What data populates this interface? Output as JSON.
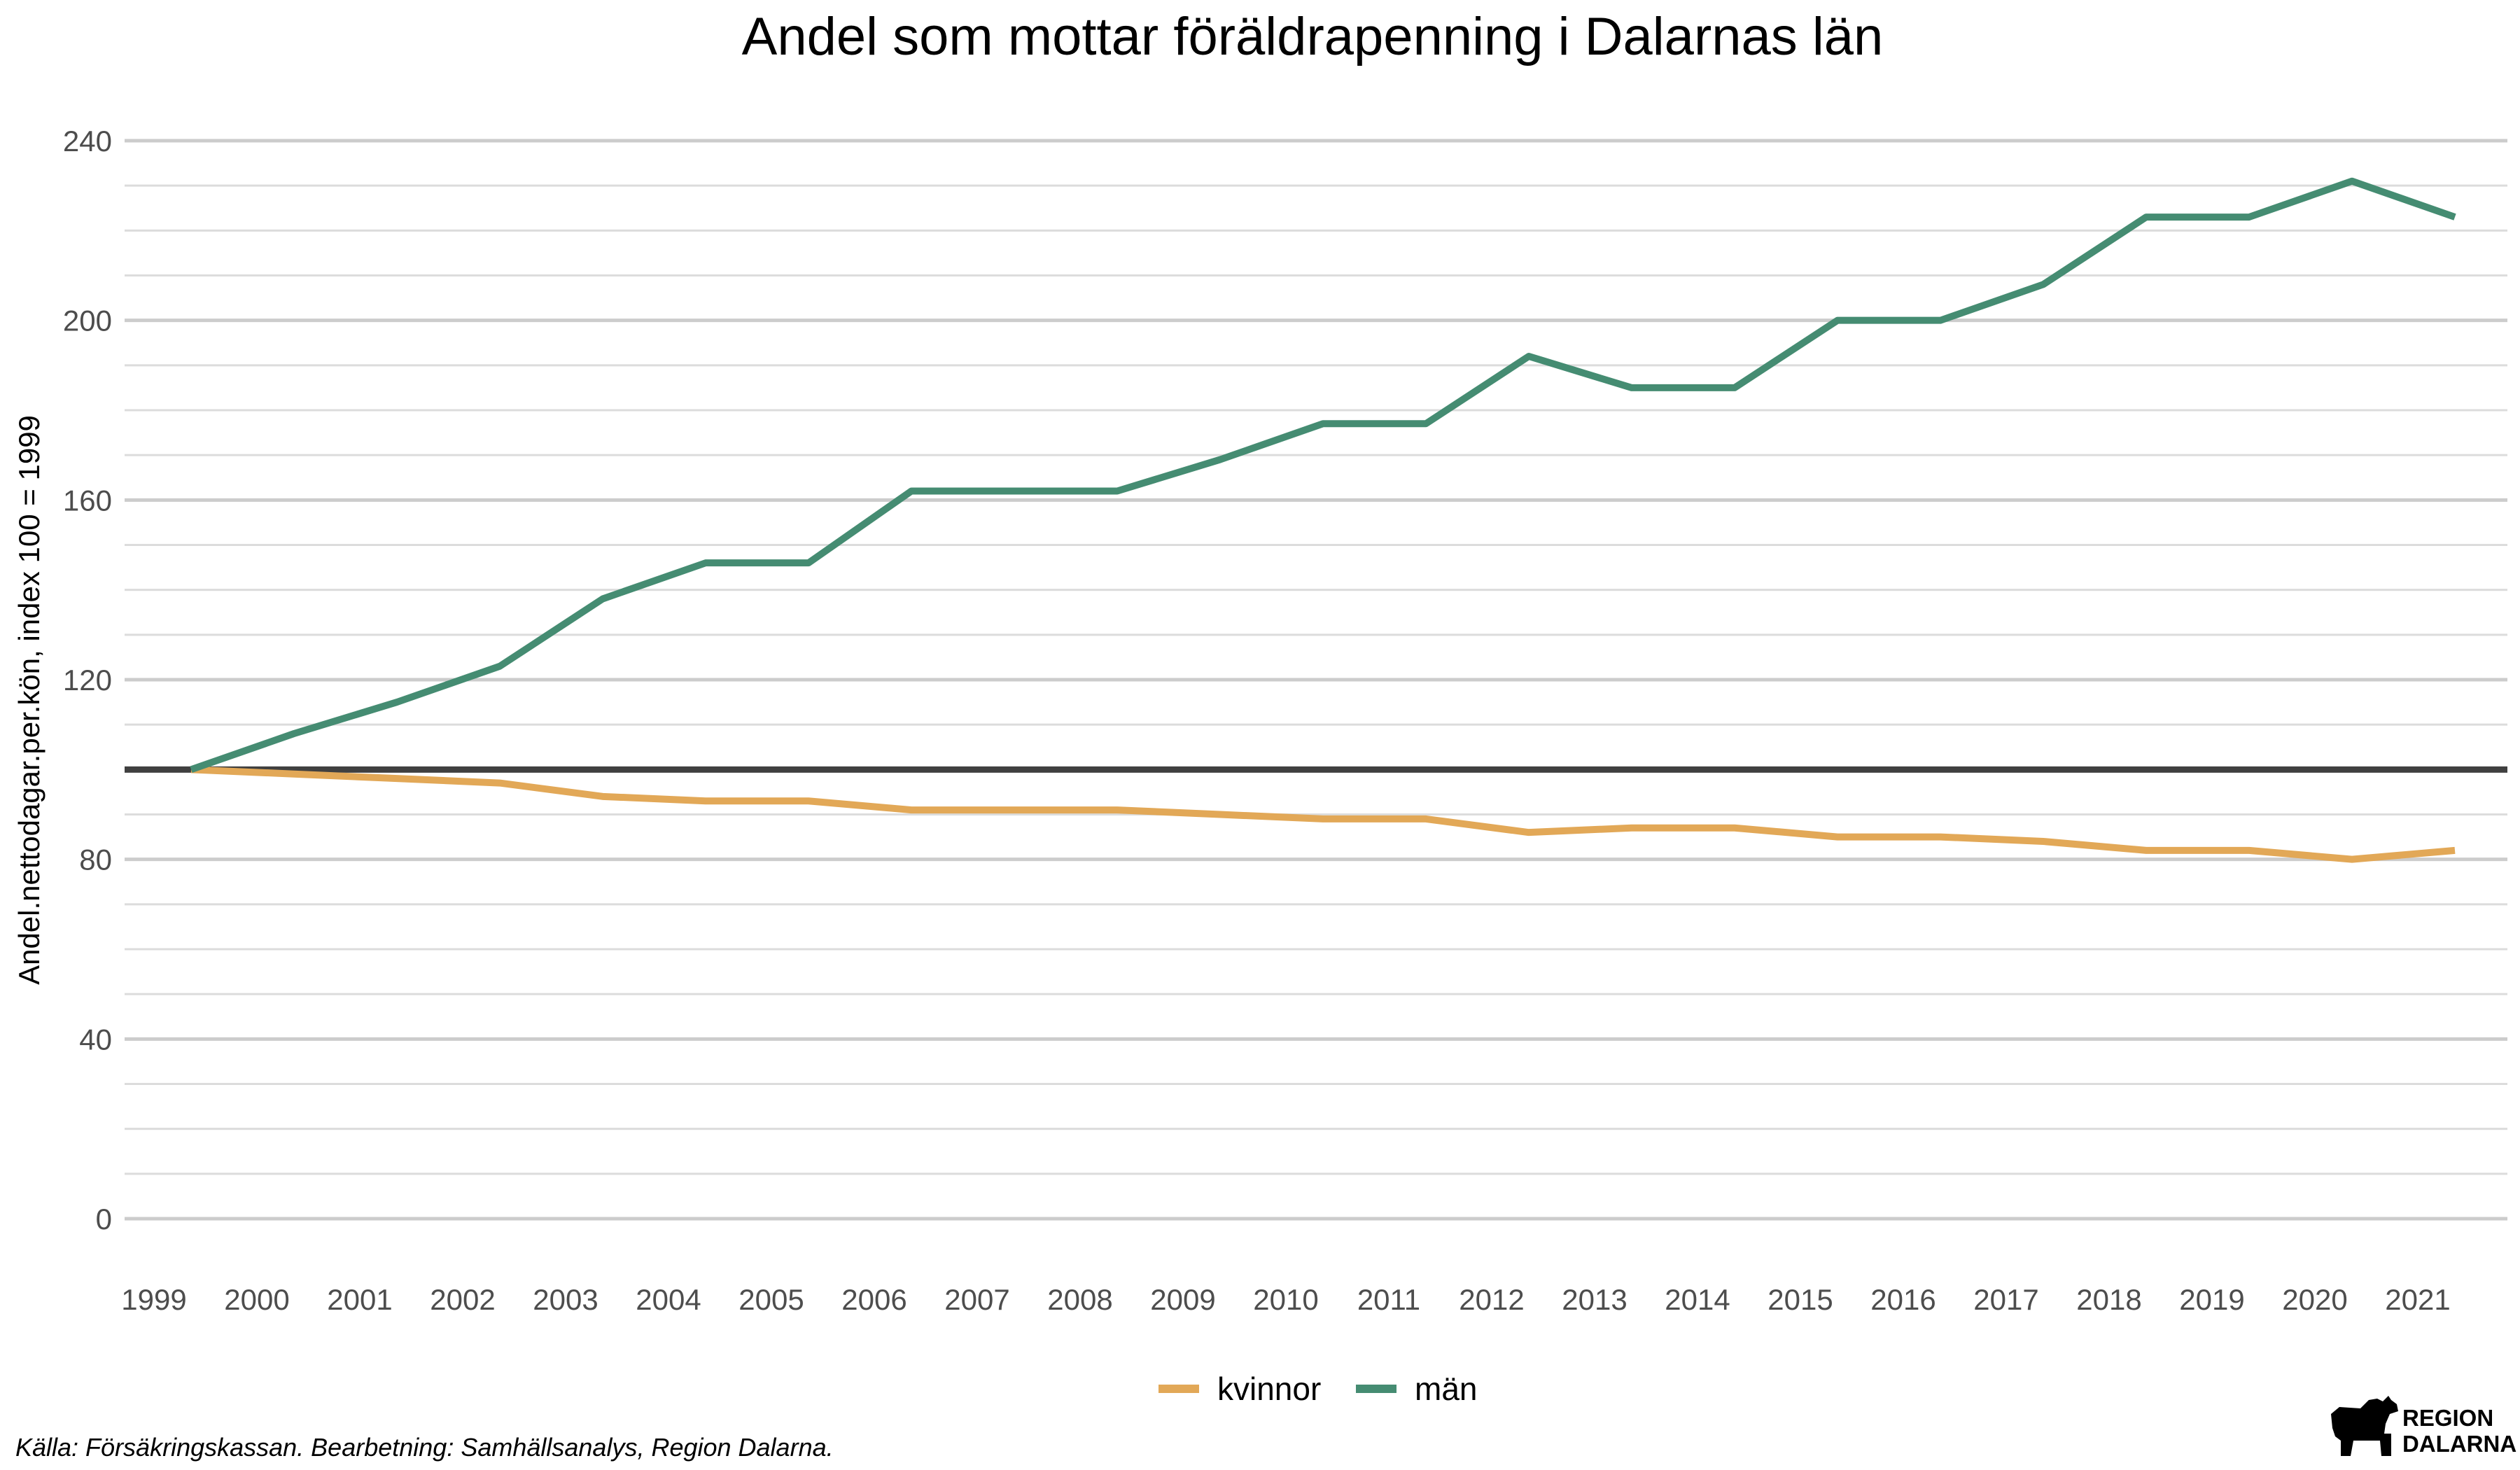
{
  "chart_data": {
    "type": "line",
    "title": "Andel som mottar föräldrapenning i Dalarnas län",
    "xlabel": "",
    "ylabel": "Andel.nettodagar.per.kön, index 100 = 1999",
    "x": [
      "1999",
      "2000",
      "2001",
      "2002",
      "2003",
      "2004",
      "2005",
      "2006",
      "2007",
      "2008",
      "2009",
      "2010",
      "2011",
      "2012",
      "2013",
      "2014",
      "2015",
      "2016",
      "2017",
      "2018",
      "2019",
      "2020",
      "2021"
    ],
    "ylim": [
      0,
      240
    ],
    "yticks": [
      "0",
      "40",
      "80",
      "120",
      "160",
      "200",
      "240"
    ],
    "grid": true,
    "reference_line": 100,
    "legend_position": "bottom",
    "series": [
      {
        "name": "kvinnor",
        "color": "#e2a857",
        "values": [
          100,
          99,
          98,
          97,
          94,
          93,
          93,
          91,
          91,
          91,
          90,
          89,
          89,
          86,
          87,
          87,
          85,
          85,
          84,
          82,
          82,
          80,
          82
        ]
      },
      {
        "name": "män",
        "color": "#458c72",
        "values": [
          100,
          108,
          115,
          123,
          138,
          146,
          146,
          162,
          162,
          162,
          169,
          177,
          177,
          192,
          185,
          185,
          200,
          200,
          208,
          223,
          223,
          231,
          223
        ]
      }
    ]
  },
  "caption": "Källa: Försäkringskassan. Bearbetning: Samhällsanalys, Region Dalarna.",
  "logo": {
    "line1": "REGION",
    "line2": "DALARNA",
    "icon": "dala-horse-icon"
  }
}
